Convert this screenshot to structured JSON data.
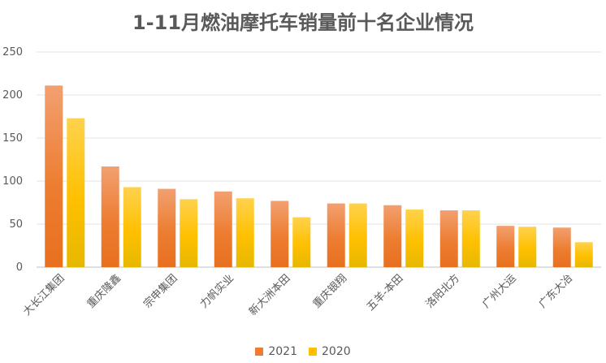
{
  "chart_data": {
    "type": "bar",
    "title": "1-11月燃油摩托车销量前十名企业情况",
    "categories": [
      "大长江集团",
      "重庆隆鑫",
      "宗申集团",
      "力帆实业",
      "新大洲本田",
      "重庆银翔",
      "五羊-本田",
      "洛阳北方",
      "广州大运",
      "广东大冶"
    ],
    "series": [
      {
        "name": "2021",
        "values": [
          211,
          117,
          91,
          88,
          77,
          74,
          72,
          66,
          48,
          46
        ],
        "color": "#ED7D31"
      },
      {
        "name": "2020",
        "values": [
          173,
          93,
          79,
          80,
          58,
          74,
          67,
          66,
          47,
          29
        ],
        "color": "#FFC000"
      }
    ],
    "y_ticks": [
      "0",
      "50",
      "100",
      "150",
      "200",
      "250"
    ],
    "ylim": [
      0,
      250
    ],
    "grid": true,
    "legend_position": "bottom"
  }
}
